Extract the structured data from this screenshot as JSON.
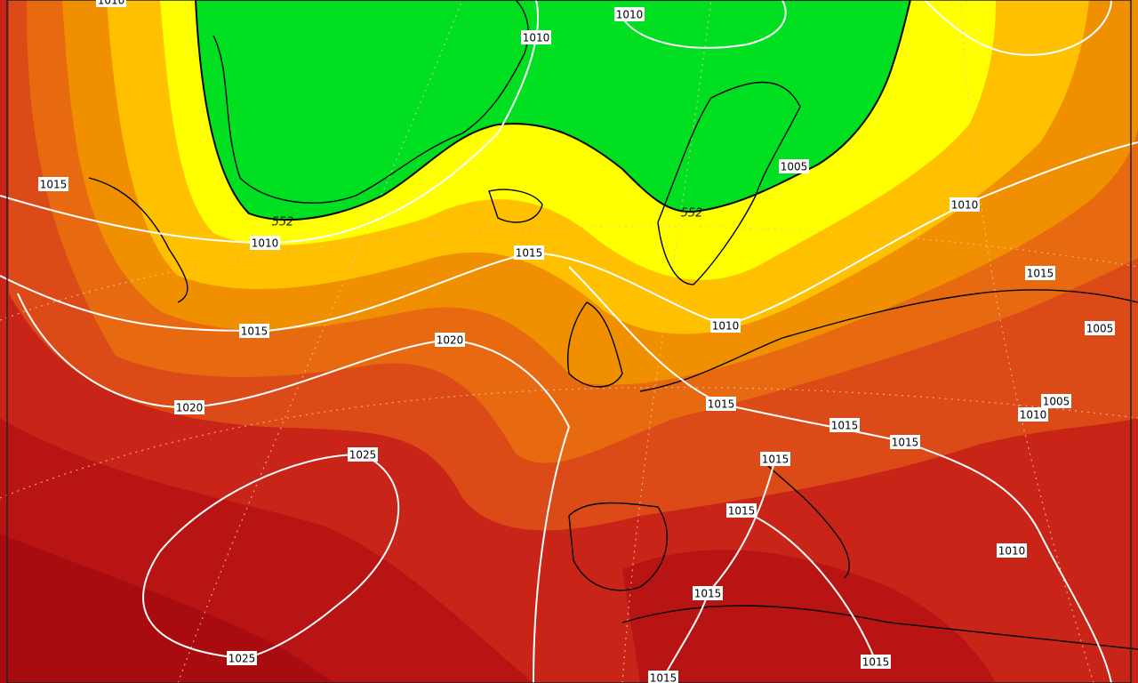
{
  "isobar_labels": [
    "1010",
    "1010",
    "1010",
    "1005",
    "1015",
    "1010",
    "1015",
    "1010",
    "1015",
    "1015",
    "1010",
    "1005",
    "1020",
    "1020",
    "1015",
    "1005",
    "1010",
    "1015",
    "1015",
    "1025",
    "1015",
    "1015",
    "1010",
    "1015",
    "1025",
    "1015",
    "1015"
  ],
  "thickness_labels": [
    "552",
    "552"
  ]
}
